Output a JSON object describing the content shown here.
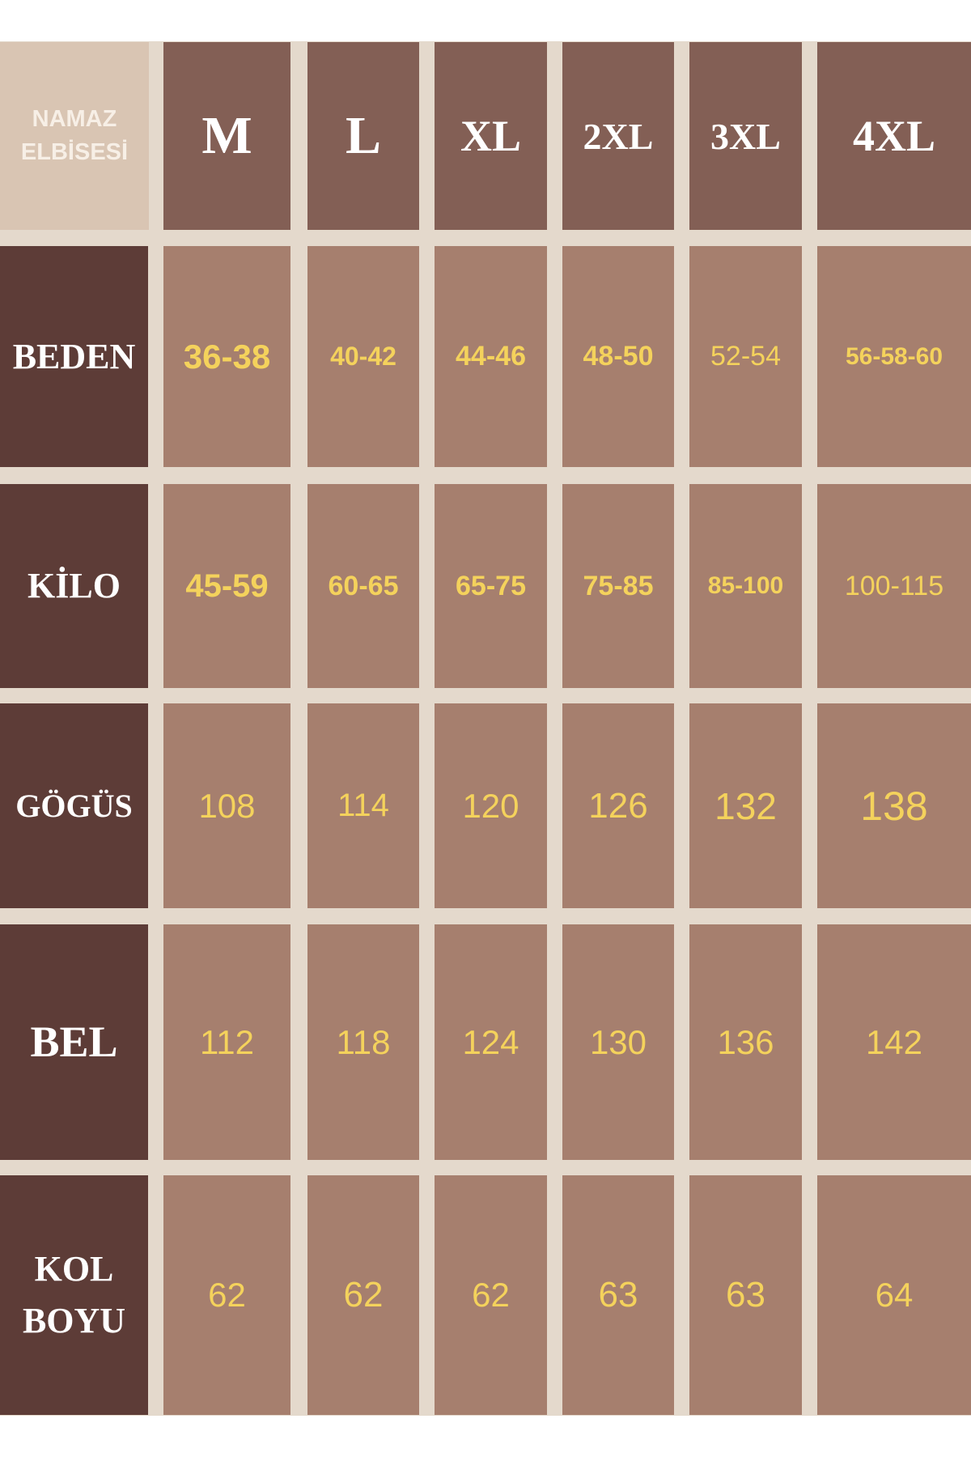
{
  "corner_label": [
    "NAMAZ",
    "ELBİSESİ"
  ],
  "sizes": [
    "M",
    "L",
    "XL",
    "2XL",
    "3XL",
    "4XL"
  ],
  "rows": [
    {
      "label": [
        "BEDEN"
      ],
      "values": [
        "36-38",
        "40-42",
        "44-46",
        "48-50",
        "52-54",
        "56-58-60"
      ]
    },
    {
      "label": [
        "KİLO"
      ],
      "values": [
        "45-59",
        "60-65",
        "65-75",
        "75-85",
        "85-100",
        "100-115"
      ]
    },
    {
      "label": [
        "GÖGÜS"
      ],
      "values": [
        "108",
        "114",
        "120",
        "126",
        "132",
        "138"
      ]
    },
    {
      "label": [
        "BEL"
      ],
      "values": [
        "112",
        "118",
        "124",
        "130",
        "136",
        "142"
      ]
    },
    {
      "label": [
        "KOL",
        "BOYU"
      ],
      "values": [
        "62",
        "62",
        "62",
        "63",
        "63",
        "64"
      ]
    }
  ],
  "colors": {
    "header": "#835f55",
    "row_label": "#5d3c37",
    "cell": "#a67f6e",
    "value_text": "#f4d25c",
    "grid_line": "#e4d9cc"
  }
}
